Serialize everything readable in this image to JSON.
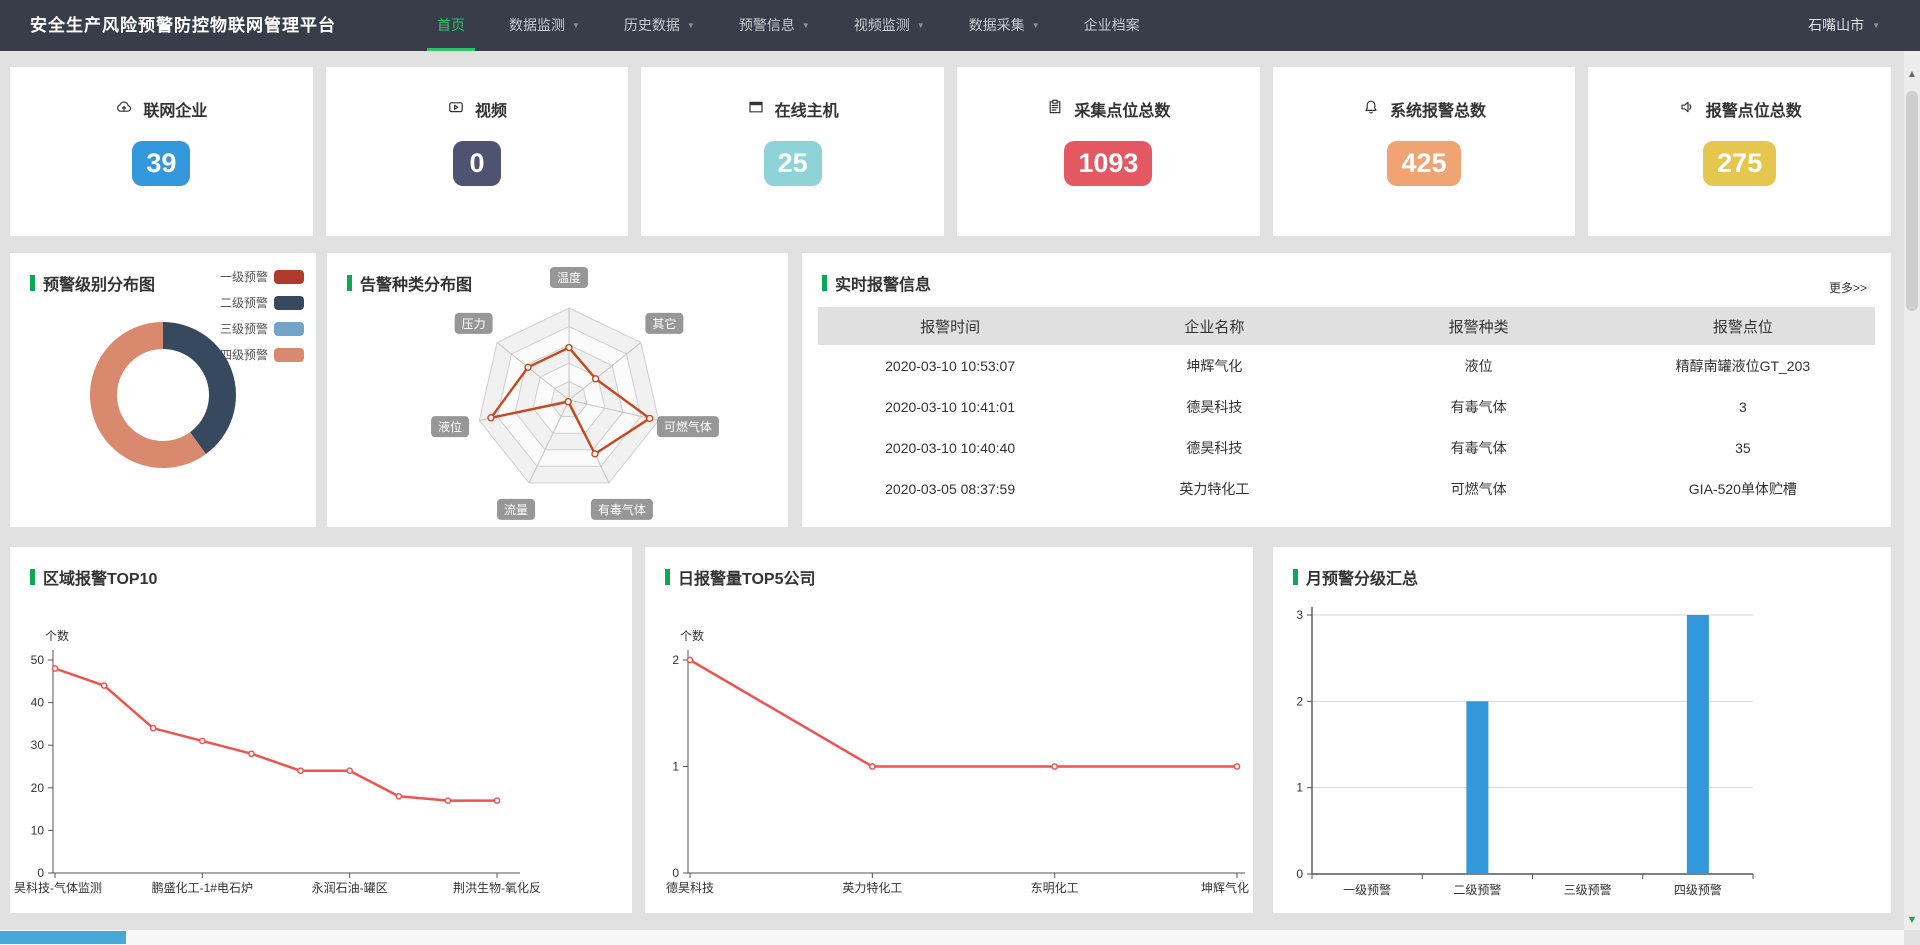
{
  "navbar": {
    "title": "安全生产风险预警防控物联网管理平台",
    "region": "石嘴山市",
    "items": [
      {
        "key": "home",
        "label": "首页",
        "caret": false,
        "active": true
      },
      {
        "key": "monitor",
        "label": "数据监测",
        "caret": true,
        "active": false
      },
      {
        "key": "history",
        "label": "历史数据",
        "caret": true,
        "active": false
      },
      {
        "key": "warning",
        "label": "预警信息",
        "caret": true,
        "active": false
      },
      {
        "key": "video",
        "label": "视频监测",
        "caret": true,
        "active": false
      },
      {
        "key": "collect",
        "label": "数据采集",
        "caret": true,
        "active": false
      },
      {
        "key": "enterprise",
        "label": "企业档案",
        "caret": false,
        "active": false
      }
    ],
    "active_color": "#2cc36b"
  },
  "stat_cards": [
    {
      "icon": "cloud-upload-icon",
      "label": "联网企业",
      "value": "39",
      "color": "#3398db"
    },
    {
      "icon": "video-icon",
      "label": "视频",
      "value": "0",
      "color": "#4d5370"
    },
    {
      "icon": "host-icon",
      "label": "在线主机",
      "value": "25",
      "color": "#8ed3d8"
    },
    {
      "icon": "clipboard-icon",
      "label": "采集点位总数",
      "value": "1093",
      "color": "#e45862"
    },
    {
      "icon": "bell-icon",
      "label": "系统报警总数",
      "value": "425",
      "color": "#f0a473"
    },
    {
      "icon": "speaker-icon",
      "label": "报警点位总数",
      "value": "275",
      "color": "#e5c64f"
    }
  ],
  "panels": {
    "pie": {
      "title": "预警级别分布图"
    },
    "radar": {
      "title": "告警种类分布图"
    },
    "realtime": {
      "title": "实时报警信息",
      "more_label": "更多>>",
      "columns": [
        "报警时间",
        "企业名称",
        "报警种类",
        "报警点位"
      ],
      "rows": [
        [
          "2020-03-10 10:53:07",
          "坤辉气化",
          "液位",
          "精醇南罐液位GT_203"
        ],
        [
          "2020-03-10 10:41:01",
          "德昊科技",
          "有毒气体",
          "3"
        ],
        [
          "2020-03-10 10:40:40",
          "德昊科技",
          "有毒气体",
          "35"
        ],
        [
          "2020-03-05 08:37:59",
          "英力特化工",
          "可燃气体",
          "GIA-520单体贮槽"
        ]
      ]
    },
    "top10": {
      "title": "区域报警TOP10"
    },
    "top5": {
      "title": "日报警量TOP5公司"
    },
    "month": {
      "title": "月预警分级汇总"
    }
  },
  "chart_data": [
    {
      "id": "level_pie",
      "type": "pie",
      "title": "预警级别分布图",
      "labels": [
        "一级预警",
        "二级预警",
        "三级预警",
        "四级预警"
      ],
      "values": [
        0,
        2,
        0,
        3
      ],
      "colors": [
        "#b03a2b",
        "#36495e",
        "#74a3c8",
        "#d9896e"
      ],
      "donut": true,
      "legend_position": "right-top"
    },
    {
      "id": "alarm_radar",
      "type": "radar",
      "title": "告警种类分布图",
      "indicators": [
        "温度",
        "其它",
        "可燃气体",
        "有毒气体",
        "流量",
        "液位",
        "压力"
      ],
      "max": 10,
      "levels": 5,
      "values": [
        5.7,
        3.7,
        9.0,
        6.5,
        0.2,
        8.7,
        5.7
      ],
      "line_color": "#c9461f"
    },
    {
      "id": "region_top10",
      "type": "line",
      "title": "区域报警TOP10",
      "ylabel": "个数",
      "ylim": [
        0,
        50
      ],
      "yticks": [
        0,
        10,
        20,
        30,
        40,
        50
      ],
      "values": [
        48,
        44,
        34,
        31,
        28,
        24,
        24,
        18,
        17,
        17
      ],
      "x_labels": [
        {
          "index": 0,
          "label": "昊科技-气体监测"
        },
        {
          "index": 3,
          "label": "鹏盛化工-1#电石炉"
        },
        {
          "index": 6,
          "label": "永润石油-罐区"
        },
        {
          "index": 9,
          "label": "荆洪生物-氧化反"
        }
      ],
      "line_color": "#ef5350",
      "grid": false
    },
    {
      "id": "daily_top5",
      "type": "line",
      "title": "日报警量TOP5公司",
      "ylabel": "个数",
      "ylim": [
        0,
        2
      ],
      "yticks": [
        0,
        1,
        2
      ],
      "categories": [
        "德昊科技",
        "英力特化工",
        "东明化工",
        "坤辉气化"
      ],
      "values": [
        2,
        1,
        1,
        1
      ],
      "line_color": "#ef5350",
      "grid": false
    },
    {
      "id": "monthly_bar",
      "type": "bar",
      "title": "月预警分级汇总",
      "ylim": [
        0,
        3
      ],
      "yticks": [
        0,
        1,
        2,
        3
      ],
      "categories": [
        "一级预警",
        "二级预警",
        "三级预警",
        "四级预警"
      ],
      "values": [
        0,
        2,
        0,
        3
      ],
      "bar_color": "#3398db",
      "grid": true
    }
  ]
}
